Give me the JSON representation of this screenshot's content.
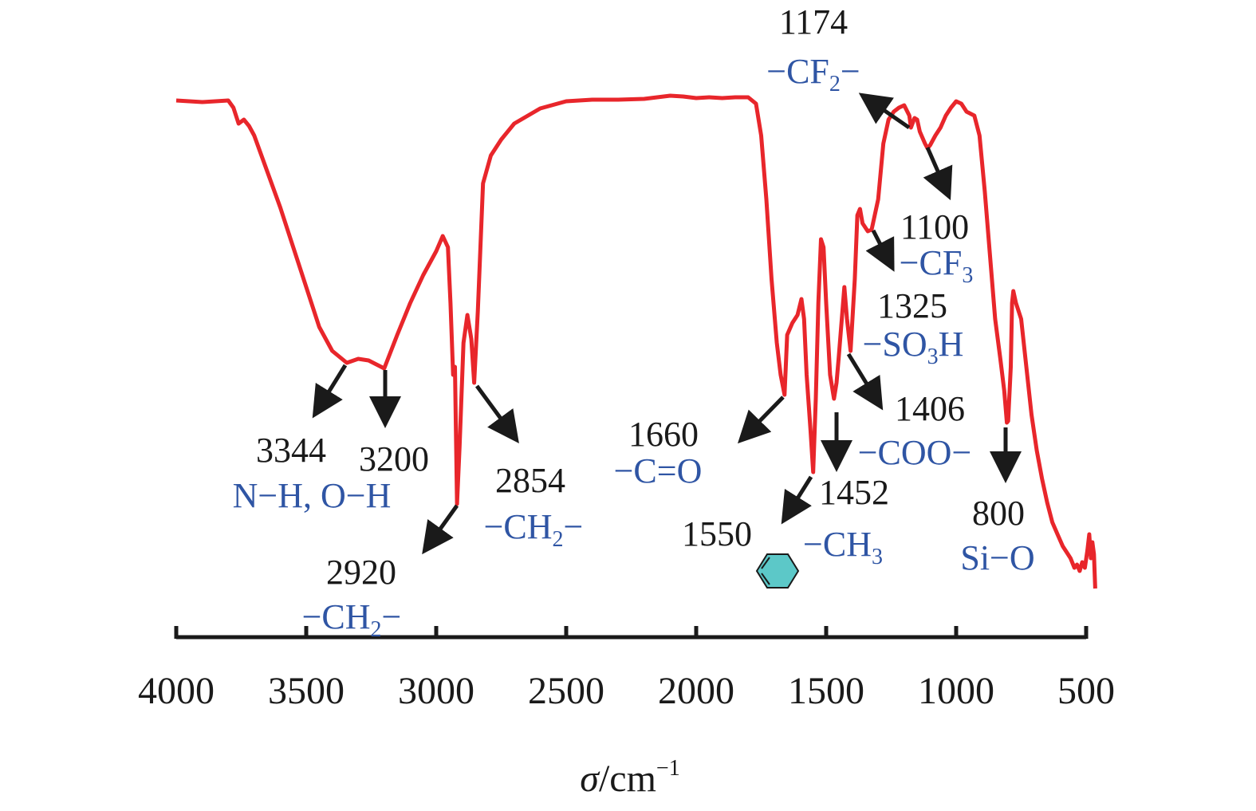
{
  "chart_data": {
    "type": "line",
    "xlabel": "σ/cm⁻¹",
    "xlabel_symbol": "σ",
    "xlabel_unit": "/cm",
    "xlabel_exponent": "−1",
    "xlim": [
      4000,
      500
    ],
    "x_ticks": [
      4000,
      3500,
      3000,
      2500,
      2000,
      1500,
      1000,
      500
    ],
    "tick_labels": [
      "4000",
      "3500",
      "3000",
      "2500",
      "2000",
      "1500",
      "1000",
      "500"
    ],
    "grid": false,
    "line_color": "#e8262b",
    "series": [
      {
        "points": [
          [
            4000,
            126
          ],
          [
            3900,
            128
          ],
          [
            3800,
            126
          ],
          [
            3780,
            135
          ],
          [
            3760,
            155
          ],
          [
            3740,
            150
          ],
          [
            3720,
            158
          ],
          [
            3700,
            170
          ],
          [
            3650,
            215
          ],
          [
            3600,
            260
          ],
          [
            3550,
            310
          ],
          [
            3500,
            360
          ],
          [
            3450,
            410
          ],
          [
            3400,
            440
          ],
          [
            3344,
            455
          ],
          [
            3300,
            450
          ],
          [
            3260,
            452
          ],
          [
            3200,
            462
          ],
          [
            3150,
            420
          ],
          [
            3100,
            380
          ],
          [
            3050,
            345
          ],
          [
            3000,
            315
          ],
          [
            2975,
            296
          ],
          [
            2955,
            310
          ],
          [
            2945,
            380
          ],
          [
            2935,
            470
          ],
          [
            2928,
            460
          ],
          [
            2920,
            632
          ],
          [
            2910,
            560
          ],
          [
            2895,
            430
          ],
          [
            2880,
            395
          ],
          [
            2865,
            425
          ],
          [
            2854,
            480
          ],
          [
            2840,
            390
          ],
          [
            2820,
            230
          ],
          [
            2790,
            195
          ],
          [
            2750,
            175
          ],
          [
            2700,
            155
          ],
          [
            2600,
            136
          ],
          [
            2500,
            127
          ],
          [
            2400,
            125
          ],
          [
            2300,
            125
          ],
          [
            2200,
            124
          ],
          [
            2150,
            122
          ],
          [
            2100,
            120
          ],
          [
            2050,
            121
          ],
          [
            2000,
            123
          ],
          [
            1950,
            122
          ],
          [
            1900,
            123
          ],
          [
            1850,
            122
          ],
          [
            1800,
            122
          ],
          [
            1770,
            130
          ],
          [
            1750,
            170
          ],
          [
            1730,
            250
          ],
          [
            1710,
            350
          ],
          [
            1690,
            430
          ],
          [
            1675,
            470
          ],
          [
            1660,
            495
          ],
          [
            1650,
            420
          ],
          [
            1630,
            405
          ],
          [
            1610,
            395
          ],
          [
            1595,
            375
          ],
          [
            1585,
            400
          ],
          [
            1575,
            470
          ],
          [
            1560,
            540
          ],
          [
            1550,
            592
          ],
          [
            1540,
            500
          ],
          [
            1530,
            380
          ],
          [
            1520,
            300
          ],
          [
            1510,
            310
          ],
          [
            1500,
            380
          ],
          [
            1485,
            470
          ],
          [
            1470,
            500
          ],
          [
            1460,
            480
          ],
          [
            1452,
            450
          ],
          [
            1440,
            400
          ],
          [
            1430,
            360
          ],
          [
            1420,
            400
          ],
          [
            1406,
            440
          ],
          [
            1390,
            350
          ],
          [
            1380,
            270
          ],
          [
            1370,
            262
          ],
          [
            1360,
            280
          ],
          [
            1340,
            290
          ],
          [
            1325,
            288
          ],
          [
            1300,
            250
          ],
          [
            1280,
            180
          ],
          [
            1260,
            150
          ],
          [
            1240,
            140
          ],
          [
            1220,
            135
          ],
          [
            1200,
            132
          ],
          [
            1180,
            145
          ],
          [
            1174,
            160
          ],
          [
            1160,
            148
          ],
          [
            1150,
            150
          ],
          [
            1140,
            165
          ],
          [
            1120,
            180
          ],
          [
            1110,
            186
          ],
          [
            1100,
            182
          ],
          [
            1080,
            170
          ],
          [
            1060,
            160
          ],
          [
            1040,
            145
          ],
          [
            1020,
            135
          ],
          [
            1000,
            127
          ],
          [
            980,
            130
          ],
          [
            960,
            140
          ],
          [
            930,
            145
          ],
          [
            910,
            170
          ],
          [
            890,
            240
          ],
          [
            870,
            320
          ],
          [
            850,
            400
          ],
          [
            830,
            450
          ],
          [
            815,
            490
          ],
          [
            805,
            530
          ],
          [
            800,
            528
          ],
          [
            790,
            460
          ],
          [
            785,
            380
          ],
          [
            780,
            365
          ],
          [
            770,
            380
          ],
          [
            750,
            400
          ],
          [
            730,
            460
          ],
          [
            710,
            520
          ],
          [
            690,
            565
          ],
          [
            670,
            600
          ],
          [
            650,
            630
          ],
          [
            630,
            655
          ],
          [
            610,
            670
          ],
          [
            590,
            685
          ],
          [
            570,
            695
          ],
          [
            560,
            700
          ],
          [
            545,
            712
          ],
          [
            535,
            708
          ],
          [
            525,
            716
          ],
          [
            515,
            705
          ],
          [
            505,
            712
          ],
          [
            495,
            690
          ],
          [
            488,
            670
          ],
          [
            482,
            700
          ],
          [
            476,
            680
          ],
          [
            470,
            695
          ],
          [
            465,
            738
          ]
        ]
      }
    ],
    "annotations": [
      {
        "wavenumber": "3344",
        "group": "N−H, O−H"
      },
      {
        "wavenumber": "3200",
        "group": ""
      },
      {
        "wavenumber": "2920",
        "group": "−CH₂−"
      },
      {
        "wavenumber": "2854",
        "group": "−CH₂−"
      },
      {
        "wavenumber": "1660",
        "group": "−C=O"
      },
      {
        "wavenumber": "1550",
        "group": "benzene-ring-icon"
      },
      {
        "wavenumber": "1452",
        "group": "−CH₃"
      },
      {
        "wavenumber": "1406",
        "group": "−COO−"
      },
      {
        "wavenumber": "1325",
        "group": "−SO₃H"
      },
      {
        "wavenumber": "1174",
        "group": "−CF₂−"
      },
      {
        "wavenumber": "1100",
        "group": "−CF₃"
      },
      {
        "wavenumber": "800",
        "group": "Si−O"
      }
    ],
    "label_parts": {
      "nh_oh": "N−H, O−H",
      "ch2_pre": "−CH",
      "ch2_sub": "2",
      "ch2_post": "−",
      "co": "−C=O",
      "ch3_pre": "−CH",
      "ch3_sub": "3",
      "coo": "−COO−",
      "so3h_pre": "−SO",
      "so3h_sub": "3",
      "so3h_post": "H",
      "cf2_pre": "−CF",
      "cf2_sub": "2",
      "cf2_post": "−",
      "cf3_pre": "−CF",
      "cf3_sub": "3",
      "sio": "Si−O"
    },
    "colors": {
      "line": "#e8262b",
      "numbers": "#1a1a1a",
      "groups": "#2f55a4",
      "arrows": "#1a1a1a",
      "benzene_fill": "#5cc8c8"
    }
  }
}
